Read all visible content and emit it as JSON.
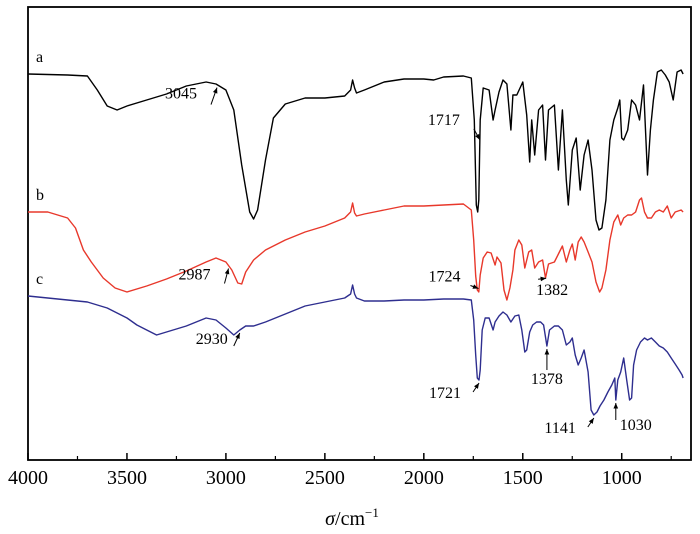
{
  "chart_data": {
    "type": "line",
    "title": "",
    "xlabel_var": "σ",
    "xlabel_unit": "/cm",
    "xlabel_exp": "−1",
    "ylabel": "",
    "xlim": [
      4000,
      650
    ],
    "x_reversed": true,
    "grid": false,
    "x_ticks": [
      4000,
      3500,
      3000,
      2500,
      2000,
      1500,
      1000
    ],
    "x_tick_labels": [
      "4000",
      "3500",
      "3000",
      "2500",
      "2000",
      "1500",
      "1000"
    ],
    "y_ticks_shown": false,
    "colors": {
      "a": "#000000",
      "b": "#e8382b",
      "c": "#2e2e8f"
    },
    "series": [
      {
        "name": "a",
        "color": "#000000",
        "points": [
          [
            4000,
            74
          ],
          [
            3800,
            75
          ],
          [
            3700,
            76
          ],
          [
            3650,
            90
          ],
          [
            3600,
            106
          ],
          [
            3550,
            110
          ],
          [
            3500,
            106
          ],
          [
            3400,
            100
          ],
          [
            3300,
            94
          ],
          [
            3200,
            86
          ],
          [
            3100,
            82
          ],
          [
            3050,
            84
          ],
          [
            3000,
            90
          ],
          [
            2960,
            110
          ],
          [
            2920,
            165
          ],
          [
            2880,
            212
          ],
          [
            2860,
            219
          ],
          [
            2840,
            210
          ],
          [
            2800,
            160
          ],
          [
            2760,
            118
          ],
          [
            2700,
            104
          ],
          [
            2600,
            98
          ],
          [
            2500,
            98
          ],
          [
            2400,
            96
          ],
          [
            2370,
            90
          ],
          [
            2360,
            80
          ],
          [
            2350,
            88
          ],
          [
            2340,
            93
          ],
          [
            2300,
            90
          ],
          [
            2200,
            82
          ],
          [
            2100,
            79
          ],
          [
            2000,
            79
          ],
          [
            1950,
            80
          ],
          [
            1900,
            77
          ],
          [
            1800,
            76
          ],
          [
            1760,
            78
          ],
          [
            1745,
            120
          ],
          [
            1735,
            205
          ],
          [
            1728,
            212
          ],
          [
            1722,
            200
          ],
          [
            1715,
            120
          ],
          [
            1700,
            88
          ],
          [
            1670,
            90
          ],
          [
            1650,
            120
          ],
          [
            1640,
            110
          ],
          [
            1620,
            92
          ],
          [
            1600,
            80
          ],
          [
            1580,
            84
          ],
          [
            1560,
            130
          ],
          [
            1550,
            95
          ],
          [
            1530,
            95
          ],
          [
            1500,
            82
          ],
          [
            1480,
            115
          ],
          [
            1465,
            162
          ],
          [
            1455,
            120
          ],
          [
            1440,
            155
          ],
          [
            1420,
            110
          ],
          [
            1400,
            105
          ],
          [
            1385,
            160
          ],
          [
            1370,
            110
          ],
          [
            1340,
            105
          ],
          [
            1320,
            170
          ],
          [
            1300,
            110
          ],
          [
            1280,
            180
          ],
          [
            1270,
            205
          ],
          [
            1250,
            150
          ],
          [
            1230,
            138
          ],
          [
            1210,
            190
          ],
          [
            1190,
            155
          ],
          [
            1170,
            140
          ],
          [
            1150,
            170
          ],
          [
            1130,
            220
          ],
          [
            1115,
            230
          ],
          [
            1100,
            228
          ],
          [
            1080,
            200
          ],
          [
            1060,
            140
          ],
          [
            1040,
            120
          ],
          [
            1020,
            108
          ],
          [
            1010,
            100
          ],
          [
            1000,
            138
          ],
          [
            990,
            140
          ],
          [
            970,
            130
          ],
          [
            950,
            100
          ],
          [
            930,
            105
          ],
          [
            910,
            120
          ],
          [
            890,
            85
          ],
          [
            880,
            130
          ],
          [
            870,
            175
          ],
          [
            855,
            130
          ],
          [
            840,
            100
          ],
          [
            820,
            72
          ],
          [
            800,
            70
          ],
          [
            780,
            75
          ],
          [
            760,
            82
          ],
          [
            740,
            100
          ],
          [
            720,
            72
          ],
          [
            700,
            70
          ],
          [
            690,
            74
          ]
        ]
      },
      {
        "name": "b",
        "color": "#e8382b",
        "points": [
          [
            4000,
            212
          ],
          [
            3900,
            212
          ],
          [
            3850,
            215
          ],
          [
            3800,
            218
          ],
          [
            3760,
            228
          ],
          [
            3720,
            250
          ],
          [
            3680,
            262
          ],
          [
            3620,
            278
          ],
          [
            3560,
            288
          ],
          [
            3500,
            292
          ],
          [
            3400,
            286
          ],
          [
            3300,
            279
          ],
          [
            3200,
            271
          ],
          [
            3100,
            262
          ],
          [
            3050,
            258
          ],
          [
            3000,
            262
          ],
          [
            2970,
            270
          ],
          [
            2940,
            283
          ],
          [
            2920,
            284
          ],
          [
            2900,
            272
          ],
          [
            2860,
            260
          ],
          [
            2800,
            250
          ],
          [
            2700,
            240
          ],
          [
            2600,
            232
          ],
          [
            2500,
            226
          ],
          [
            2400,
            218
          ],
          [
            2370,
            212
          ],
          [
            2360,
            203
          ],
          [
            2350,
            213
          ],
          [
            2340,
            216
          ],
          [
            2300,
            214
          ],
          [
            2200,
            210
          ],
          [
            2100,
            206
          ],
          [
            2000,
            206
          ],
          [
            1900,
            205
          ],
          [
            1800,
            204
          ],
          [
            1760,
            210
          ],
          [
            1748,
            240
          ],
          [
            1738,
            276
          ],
          [
            1730,
            290
          ],
          [
            1722,
            292
          ],
          [
            1715,
            275
          ],
          [
            1700,
            258
          ],
          [
            1680,
            252
          ],
          [
            1660,
            253
          ],
          [
            1640,
            265
          ],
          [
            1630,
            257
          ],
          [
            1610,
            263
          ],
          [
            1595,
            290
          ],
          [
            1580,
            300
          ],
          [
            1565,
            288
          ],
          [
            1550,
            270
          ],
          [
            1540,
            250
          ],
          [
            1520,
            240
          ],
          [
            1505,
            245
          ],
          [
            1490,
            268
          ],
          [
            1470,
            252
          ],
          [
            1455,
            250
          ],
          [
            1440,
            268
          ],
          [
            1420,
            262
          ],
          [
            1400,
            260
          ],
          [
            1385,
            278
          ],
          [
            1370,
            264
          ],
          [
            1340,
            262
          ],
          [
            1320,
            254
          ],
          [
            1300,
            246
          ],
          [
            1280,
            262
          ],
          [
            1262,
            250
          ],
          [
            1250,
            244
          ],
          [
            1235,
            260
          ],
          [
            1220,
            242
          ],
          [
            1205,
            237
          ],
          [
            1190,
            242
          ],
          [
            1170,
            252
          ],
          [
            1150,
            262
          ],
          [
            1130,
            282
          ],
          [
            1112,
            292
          ],
          [
            1100,
            288
          ],
          [
            1080,
            270
          ],
          [
            1060,
            240
          ],
          [
            1040,
            222
          ],
          [
            1020,
            215
          ],
          [
            1005,
            225
          ],
          [
            990,
            218
          ],
          [
            970,
            215
          ],
          [
            950,
            215
          ],
          [
            930,
            212
          ],
          [
            910,
            200
          ],
          [
            900,
            198
          ],
          [
            885,
            212
          ],
          [
            870,
            218
          ],
          [
            850,
            218
          ],
          [
            830,
            212
          ],
          [
            810,
            210
          ],
          [
            790,
            212
          ],
          [
            770,
            206
          ],
          [
            750,
            218
          ],
          [
            730,
            212
          ],
          [
            700,
            210
          ],
          [
            690,
            212
          ]
        ]
      },
      {
        "name": "c",
        "color": "#2e2e8f",
        "points": [
          [
            4000,
            296
          ],
          [
            3900,
            298
          ],
          [
            3800,
            300
          ],
          [
            3700,
            302
          ],
          [
            3600,
            308
          ],
          [
            3500,
            318
          ],
          [
            3450,
            325
          ],
          [
            3400,
            330
          ],
          [
            3350,
            335
          ],
          [
            3300,
            332
          ],
          [
            3200,
            326
          ],
          [
            3100,
            318
          ],
          [
            3050,
            320
          ],
          [
            3000,
            328
          ],
          [
            2960,
            335
          ],
          [
            2930,
            330
          ],
          [
            2900,
            326
          ],
          [
            2860,
            326
          ],
          [
            2800,
            322
          ],
          [
            2700,
            314
          ],
          [
            2600,
            306
          ],
          [
            2500,
            302
          ],
          [
            2400,
            298
          ],
          [
            2370,
            294
          ],
          [
            2360,
            285
          ],
          [
            2350,
            294
          ],
          [
            2340,
            298
          ],
          [
            2300,
            301
          ],
          [
            2200,
            301
          ],
          [
            2100,
            300
          ],
          [
            2000,
            300
          ],
          [
            1900,
            299
          ],
          [
            1800,
            299
          ],
          [
            1760,
            300
          ],
          [
            1748,
            320
          ],
          [
            1738,
            355
          ],
          [
            1730,
            378
          ],
          [
            1721,
            380
          ],
          [
            1715,
            370
          ],
          [
            1705,
            330
          ],
          [
            1690,
            318
          ],
          [
            1670,
            318
          ],
          [
            1650,
            330
          ],
          [
            1640,
            322
          ],
          [
            1620,
            316
          ],
          [
            1600,
            312
          ],
          [
            1580,
            315
          ],
          [
            1560,
            322
          ],
          [
            1540,
            316
          ],
          [
            1520,
            315
          ],
          [
            1505,
            330
          ],
          [
            1490,
            352
          ],
          [
            1480,
            350
          ],
          [
            1465,
            332
          ],
          [
            1450,
            325
          ],
          [
            1430,
            322
          ],
          [
            1410,
            322
          ],
          [
            1395,
            325
          ],
          [
            1378,
            346
          ],
          [
            1365,
            330
          ],
          [
            1340,
            326
          ],
          [
            1320,
            326
          ],
          [
            1300,
            330
          ],
          [
            1280,
            345
          ],
          [
            1262,
            342
          ],
          [
            1250,
            338
          ],
          [
            1235,
            355
          ],
          [
            1220,
            365
          ],
          [
            1205,
            358
          ],
          [
            1190,
            350
          ],
          [
            1170,
            372
          ],
          [
            1155,
            410
          ],
          [
            1141,
            415
          ],
          [
            1125,
            412
          ],
          [
            1110,
            406
          ],
          [
            1090,
            400
          ],
          [
            1070,
            392
          ],
          [
            1050,
            385
          ],
          [
            1035,
            378
          ],
          [
            1030,
            400
          ],
          [
            1020,
            380
          ],
          [
            1005,
            372
          ],
          [
            990,
            358
          ],
          [
            975,
            380
          ],
          [
            960,
            400
          ],
          [
            950,
            398
          ],
          [
            940,
            365
          ],
          [
            925,
            350
          ],
          [
            905,
            342
          ],
          [
            885,
            338
          ],
          [
            870,
            340
          ],
          [
            850,
            338
          ],
          [
            830,
            342
          ],
          [
            810,
            346
          ],
          [
            790,
            348
          ],
          [
            770,
            352
          ],
          [
            750,
            358
          ],
          [
            730,
            364
          ],
          [
            710,
            370
          ],
          [
            695,
            375
          ],
          [
            690,
            378
          ]
        ]
      }
    ],
    "annotations": [
      {
        "text": "3045",
        "series": "a",
        "x": 3045
      },
      {
        "text": "1717",
        "series": "a",
        "x": 1717
      },
      {
        "text": "2987",
        "series": "b",
        "x": 2987
      },
      {
        "text": "1724",
        "series": "b",
        "x": 1724
      },
      {
        "text": "1382",
        "series": "b",
        "x": 1382
      },
      {
        "text": "2930",
        "series": "c",
        "x": 2930
      },
      {
        "text": "1721",
        "series": "c",
        "x": 1721
      },
      {
        "text": "1378",
        "series": "c",
        "x": 1378
      },
      {
        "text": "1141",
        "series": "c",
        "x": 1141
      },
      {
        "text": "1030",
        "series": "c",
        "x": 1030
      }
    ]
  }
}
